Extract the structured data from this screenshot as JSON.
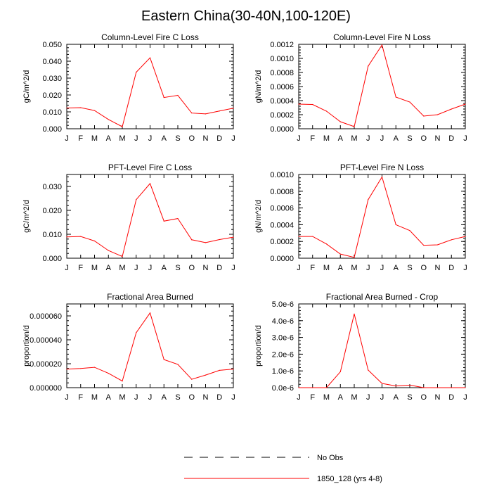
{
  "title": "Eastern China(30-40N,100-120E)",
  "legend": {
    "placement": "bottom-center",
    "entries": [
      {
        "label": "No Obs",
        "color": "#000000",
        "dash": "dashed"
      },
      {
        "label": "1850_128 (yrs 4-8)",
        "color": "#ff0000",
        "dash": "solid"
      }
    ]
  },
  "chart_data": [
    {
      "type": "line",
      "title": "Column-Level Fire C Loss",
      "ylabel": "gC/m^2/d",
      "categories": [
        "J",
        "F",
        "M",
        "A",
        "M",
        "J",
        "J",
        "A",
        "S",
        "O",
        "N",
        "D",
        "J"
      ],
      "yticks": [
        "0.000",
        "0.010",
        "0.020",
        "0.030",
        "0.040",
        "0.050"
      ],
      "ylim": [
        0,
        0.05
      ],
      "series": [
        {
          "name": "1850_128 (yrs 4-8)",
          "color": "#ff0000",
          "values": [
            0.0123,
            0.0125,
            0.0108,
            0.0055,
            0.0012,
            0.0335,
            0.042,
            0.0185,
            0.0198,
            0.0093,
            0.0088,
            0.0105,
            0.0122
          ]
        }
      ]
    },
    {
      "type": "line",
      "title": "Column-Level Fire N Loss",
      "ylabel": "gN/m^2/d",
      "categories": [
        "J",
        "F",
        "M",
        "A",
        "M",
        "J",
        "J",
        "A",
        "S",
        "O",
        "N",
        "D",
        "J"
      ],
      "yticks": [
        "0.0000",
        "0.0002",
        "0.0004",
        "0.0006",
        "0.0008",
        "0.0010",
        "0.0012"
      ],
      "ylim": [
        0,
        0.0012
      ],
      "series": [
        {
          "name": "1850_128 (yrs 4-8)",
          "color": "#ff0000",
          "values": [
            0.00035,
            0.000345,
            0.00025,
            0.0001,
            3e-05,
            0.00089,
            0.00119,
            0.00045,
            0.00038,
            0.00018,
            0.0002,
            0.00028,
            0.00035
          ]
        }
      ]
    },
    {
      "type": "line",
      "title": "PFT-Level Fire C Loss",
      "ylabel": "gC/m^2/d",
      "categories": [
        "J",
        "F",
        "M",
        "A",
        "M",
        "J",
        "J",
        "A",
        "S",
        "O",
        "N",
        "D",
        "J"
      ],
      "yticks": [
        "0.000",
        "0.010",
        "0.020",
        "0.030"
      ],
      "ylim": [
        0,
        0.035
      ],
      "series": [
        {
          "name": "1850_128 (yrs 4-8)",
          "color": "#ff0000",
          "values": [
            0.0089,
            0.0091,
            0.0072,
            0.0032,
            0.0007,
            0.0245,
            0.0312,
            0.0155,
            0.0166,
            0.0077,
            0.0065,
            0.0078,
            0.0088
          ]
        }
      ]
    },
    {
      "type": "line",
      "title": "PFT-Level Fire N Loss",
      "ylabel": "gN/m^2/d",
      "categories": [
        "J",
        "F",
        "M",
        "A",
        "M",
        "J",
        "J",
        "A",
        "S",
        "O",
        "N",
        "D",
        "J"
      ],
      "yticks": [
        "0.0000",
        "0.0002",
        "0.0004",
        "0.0006",
        "0.0008",
        "0.0010"
      ],
      "ylim": [
        0,
        0.001
      ],
      "series": [
        {
          "name": "1850_128 (yrs 4-8)",
          "color": "#ff0000",
          "values": [
            0.00026,
            0.00026,
            0.00017,
            5e-05,
            1e-05,
            0.0007,
            0.00097,
            0.0004,
            0.00033,
            0.000155,
            0.00016,
            0.00022,
            0.00026
          ]
        }
      ]
    },
    {
      "type": "line",
      "title": "Fractional Area Burned",
      "ylabel": "proportion/d",
      "categories": [
        "J",
        "F",
        "M",
        "A",
        "M",
        "J",
        "J",
        "A",
        "S",
        "O",
        "N",
        "D",
        "J"
      ],
      "yticks": [
        "0.000000",
        "0.000020",
        "0.000040",
        "0.000060"
      ],
      "ylim": [
        0,
        7e-05
      ],
      "series": [
        {
          "name": "1850_128 (yrs 4-8)",
          "color": "#ff0000",
          "values": [
            1.55e-05,
            1.6e-05,
            1.7e-05,
            1.2e-05,
            5.5e-06,
            4.6e-05,
            6.25e-05,
            2.35e-05,
            1.95e-05,
            7e-06,
            1.05e-05,
            1.45e-05,
            1.55e-05
          ]
        }
      ]
    },
    {
      "type": "line",
      "title": "Fractional Area Burned - Crop",
      "ylabel": "proportion/d",
      "categories": [
        "J",
        "F",
        "M",
        "A",
        "M",
        "J",
        "J",
        "A",
        "S",
        "O",
        "N",
        "D",
        "J"
      ],
      "yticks": [
        "0.0e-6",
        "1.0e-6",
        "2.0e-6",
        "3.0e-6",
        "4.0e-6",
        "5.0e-6"
      ],
      "ylim": [
        0,
        5e-06
      ],
      "series": [
        {
          "name": "1850_128 (yrs 4-8)",
          "color": "#ff0000",
          "values": [
            0.0,
            0.0,
            0.0,
            9.5e-07,
            4.4e-06,
            1.05e-06,
            2.5e-07,
            1e-07,
            1.5e-07,
            0.0,
            0.0,
            0.0,
            0.0
          ]
        }
      ]
    }
  ]
}
